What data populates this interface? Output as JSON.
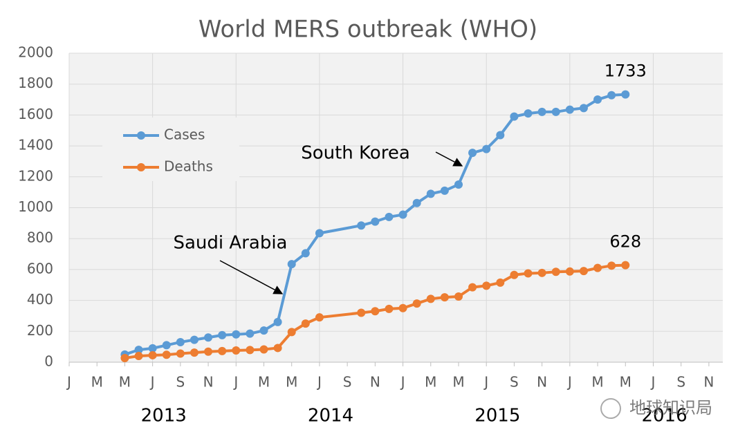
{
  "chart_data": {
    "type": "line",
    "title": "World MERS outbreak (WHO)",
    "x": [
      4,
      5,
      6,
      7,
      8,
      9,
      10,
      11,
      12,
      13,
      14,
      15,
      16,
      17,
      18,
      21,
      22,
      23,
      24,
      25,
      26,
      27,
      28,
      29,
      30,
      31,
      32,
      33,
      34,
      35,
      36,
      37,
      38,
      39,
      40
    ],
    "series": [
      {
        "name": "Cases",
        "color": "#5b9bd5",
        "values": [
          50,
          80,
          90,
          110,
          130,
          145,
          160,
          175,
          180,
          185,
          205,
          260,
          635,
          705,
          835,
          885,
          910,
          940,
          955,
          1030,
          1090,
          1110,
          1150,
          1355,
          1380,
          1470,
          1590,
          1610,
          1620,
          1620,
          1635,
          1645,
          1700,
          1728,
          1733
        ]
      },
      {
        "name": "Deaths",
        "color": "#ed7d31",
        "values": [
          27,
          40,
          45,
          48,
          56,
          62,
          68,
          72,
          76,
          79,
          83,
          92,
          195,
          250,
          290,
          320,
          330,
          345,
          350,
          380,
          410,
          420,
          425,
          485,
          495,
          515,
          565,
          575,
          578,
          585,
          587,
          590,
          610,
          625,
          628
        ]
      }
    ],
    "xlim": [
      0,
      47
    ],
    "xticks": [
      {
        "value": 0,
        "label": "J"
      },
      {
        "value": 2,
        "label": "M"
      },
      {
        "value": 4,
        "label": "M"
      },
      {
        "value": 6,
        "label": "J"
      },
      {
        "value": 8,
        "label": "S"
      },
      {
        "value": 10,
        "label": "N"
      },
      {
        "value": 12,
        "label": "J"
      },
      {
        "value": 14,
        "label": "M"
      },
      {
        "value": 16,
        "label": "M"
      },
      {
        "value": 18,
        "label": "J"
      },
      {
        "value": 20,
        "label": "S"
      },
      {
        "value": 22,
        "label": "N"
      },
      {
        "value": 24,
        "label": "J"
      },
      {
        "value": 26,
        "label": "M"
      },
      {
        "value": 28,
        "label": "M"
      },
      {
        "value": 30,
        "label": "J"
      },
      {
        "value": 32,
        "label": "S"
      },
      {
        "value": 34,
        "label": "N"
      },
      {
        "value": 36,
        "label": "J"
      },
      {
        "value": 38,
        "label": "M"
      },
      {
        "value": 40,
        "label": "M"
      },
      {
        "value": 42,
        "label": "J"
      },
      {
        "value": 44,
        "label": "S"
      },
      {
        "value": 46,
        "label": "N"
      }
    ],
    "year_labels": [
      "2013",
      "2014",
      "2015",
      "2016"
    ],
    "ylim": [
      0,
      2000
    ],
    "yticks": [
      0,
      200,
      400,
      600,
      800,
      1000,
      1200,
      1400,
      1600,
      1800,
      2000
    ],
    "grid": true,
    "annotations": [
      "Saudi Arabia",
      "South Korea"
    ],
    "watermark": "地球知识局"
  }
}
